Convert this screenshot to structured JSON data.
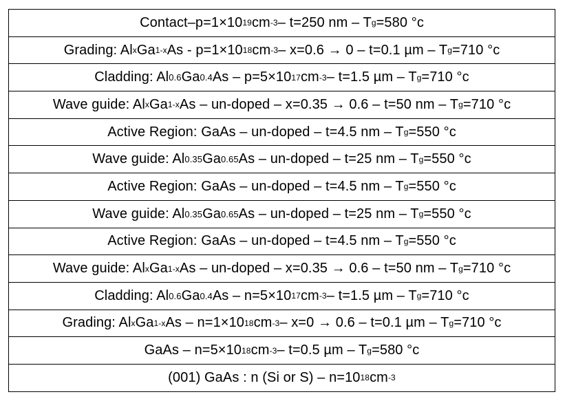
{
  "layers": [
    {
      "parts": [
        [
          "t",
          "Contact–p=1×10"
        ],
        [
          "sup",
          "19"
        ],
        [
          "t",
          " cm"
        ],
        [
          "sup",
          "-3"
        ],
        [
          "t",
          " –  t=250 nm – T"
        ],
        [
          "sub",
          "g"
        ],
        [
          "t",
          "=580 °c"
        ]
      ]
    },
    {
      "parts": [
        [
          "t",
          "Grading: Al"
        ],
        [
          "sub",
          "x"
        ],
        [
          "t",
          "Ga"
        ],
        [
          "sub",
          "1-x"
        ],
        [
          "t",
          "As - p=1×10"
        ],
        [
          "sup",
          "18"
        ],
        [
          "t",
          " cm"
        ],
        [
          "sup",
          "-3"
        ],
        [
          "t",
          " – x=0.6 → 0  –  t=0.1 µm – T"
        ],
        [
          "sub",
          "g"
        ],
        [
          "t",
          "=710 °c"
        ]
      ]
    },
    {
      "parts": [
        [
          "t",
          "Cladding: Al"
        ],
        [
          "c",
          "0.6"
        ],
        [
          "t",
          "Ga"
        ],
        [
          "c",
          "0.4"
        ],
        [
          "t",
          "As – p=5×10"
        ],
        [
          "sup",
          "17"
        ],
        [
          "t",
          " cm"
        ],
        [
          "sup",
          "-3"
        ],
        [
          "t",
          " –  t=1.5 µm – T"
        ],
        [
          "sub",
          "g"
        ],
        [
          "t",
          "=710 °c"
        ]
      ]
    },
    {
      "parts": [
        [
          "t",
          "Wave guide: Al"
        ],
        [
          "sub",
          "x"
        ],
        [
          "t",
          "Ga"
        ],
        [
          "sub",
          "1-x"
        ],
        [
          "t",
          "As – un-doped – x=0.35 → 0.6 – t=50 nm – T"
        ],
        [
          "sub",
          "g"
        ],
        [
          "t",
          "=710 °c"
        ]
      ]
    },
    {
      "parts": [
        [
          "t",
          "Active Region: GaAs – un-doped – t=4.5 nm – T"
        ],
        [
          "sub",
          "g"
        ],
        [
          "t",
          "=550 °c"
        ]
      ]
    },
    {
      "parts": [
        [
          "t",
          "Wave guide: Al"
        ],
        [
          "c",
          "0.35"
        ],
        [
          "t",
          "Ga"
        ],
        [
          "c",
          "0.65"
        ],
        [
          "t",
          "As – un-doped – t=25 nm – T"
        ],
        [
          "sub",
          "g"
        ],
        [
          "t",
          "=550 °c"
        ]
      ]
    },
    {
      "parts": [
        [
          "t",
          "Active Region: GaAs – un-doped – t=4.5 nm – T"
        ],
        [
          "sub",
          "g"
        ],
        [
          "t",
          "=550 °c"
        ]
      ]
    },
    {
      "parts": [
        [
          "t",
          "Wave guide: Al"
        ],
        [
          "c",
          "0.35"
        ],
        [
          "t",
          "Ga"
        ],
        [
          "c",
          "0.65"
        ],
        [
          "t",
          "As – un-doped – t=25 nm – T"
        ],
        [
          "sub",
          "g"
        ],
        [
          "t",
          "=550 °c"
        ]
      ]
    },
    {
      "parts": [
        [
          "t",
          "Active Region: GaAs – un-doped – t=4.5 nm – T"
        ],
        [
          "sub",
          "g"
        ],
        [
          "t",
          "=550 °c"
        ]
      ]
    },
    {
      "parts": [
        [
          "t",
          "Wave guide: Al"
        ],
        [
          "sub",
          "x"
        ],
        [
          "t",
          "Ga"
        ],
        [
          "sub",
          "1-x"
        ],
        [
          "t",
          "As – un-doped – x=0.35 → 0.6 – t=50 nm – T"
        ],
        [
          "sub",
          "g"
        ],
        [
          "t",
          "=710 °c"
        ]
      ]
    },
    {
      "parts": [
        [
          "t",
          "Cladding: Al"
        ],
        [
          "c",
          "0.6"
        ],
        [
          "t",
          "Ga"
        ],
        [
          "c",
          "0.4"
        ],
        [
          "t",
          "As – n=5×10"
        ],
        [
          "sup",
          "17"
        ],
        [
          "t",
          " cm"
        ],
        [
          "sup",
          "-3"
        ],
        [
          "t",
          " –  t=1.5 µm – T"
        ],
        [
          "sub",
          "g"
        ],
        [
          "t",
          "=710 °c"
        ]
      ]
    },
    {
      "parts": [
        [
          "t",
          "Grading: Al"
        ],
        [
          "sub",
          "x"
        ],
        [
          "t",
          "Ga"
        ],
        [
          "sub",
          "1-x"
        ],
        [
          "t",
          "As – n=1×10"
        ],
        [
          "sup",
          "18"
        ],
        [
          "t",
          " cm"
        ],
        [
          "sup",
          "-3"
        ],
        [
          "t",
          " – x=0 → 0.6  –  t=0.1 µm – T"
        ],
        [
          "sub",
          "g"
        ],
        [
          "t",
          "=710 °c"
        ]
      ]
    },
    {
      "parts": [
        [
          "t",
          "GaAs – n=5×10"
        ],
        [
          "sup",
          "18"
        ],
        [
          "t",
          " cm"
        ],
        [
          "sup",
          "-3"
        ],
        [
          "t",
          " –  t=0.5 µm – T"
        ],
        [
          "sub",
          "g"
        ],
        [
          "t",
          "=580 °c"
        ]
      ]
    },
    {
      "parts": [
        [
          "t",
          "(001) GaAs : n (Si or S) – n=10"
        ],
        [
          "sup",
          "18"
        ],
        [
          "t",
          " cm"
        ],
        [
          "sup",
          "-3"
        ]
      ]
    }
  ]
}
